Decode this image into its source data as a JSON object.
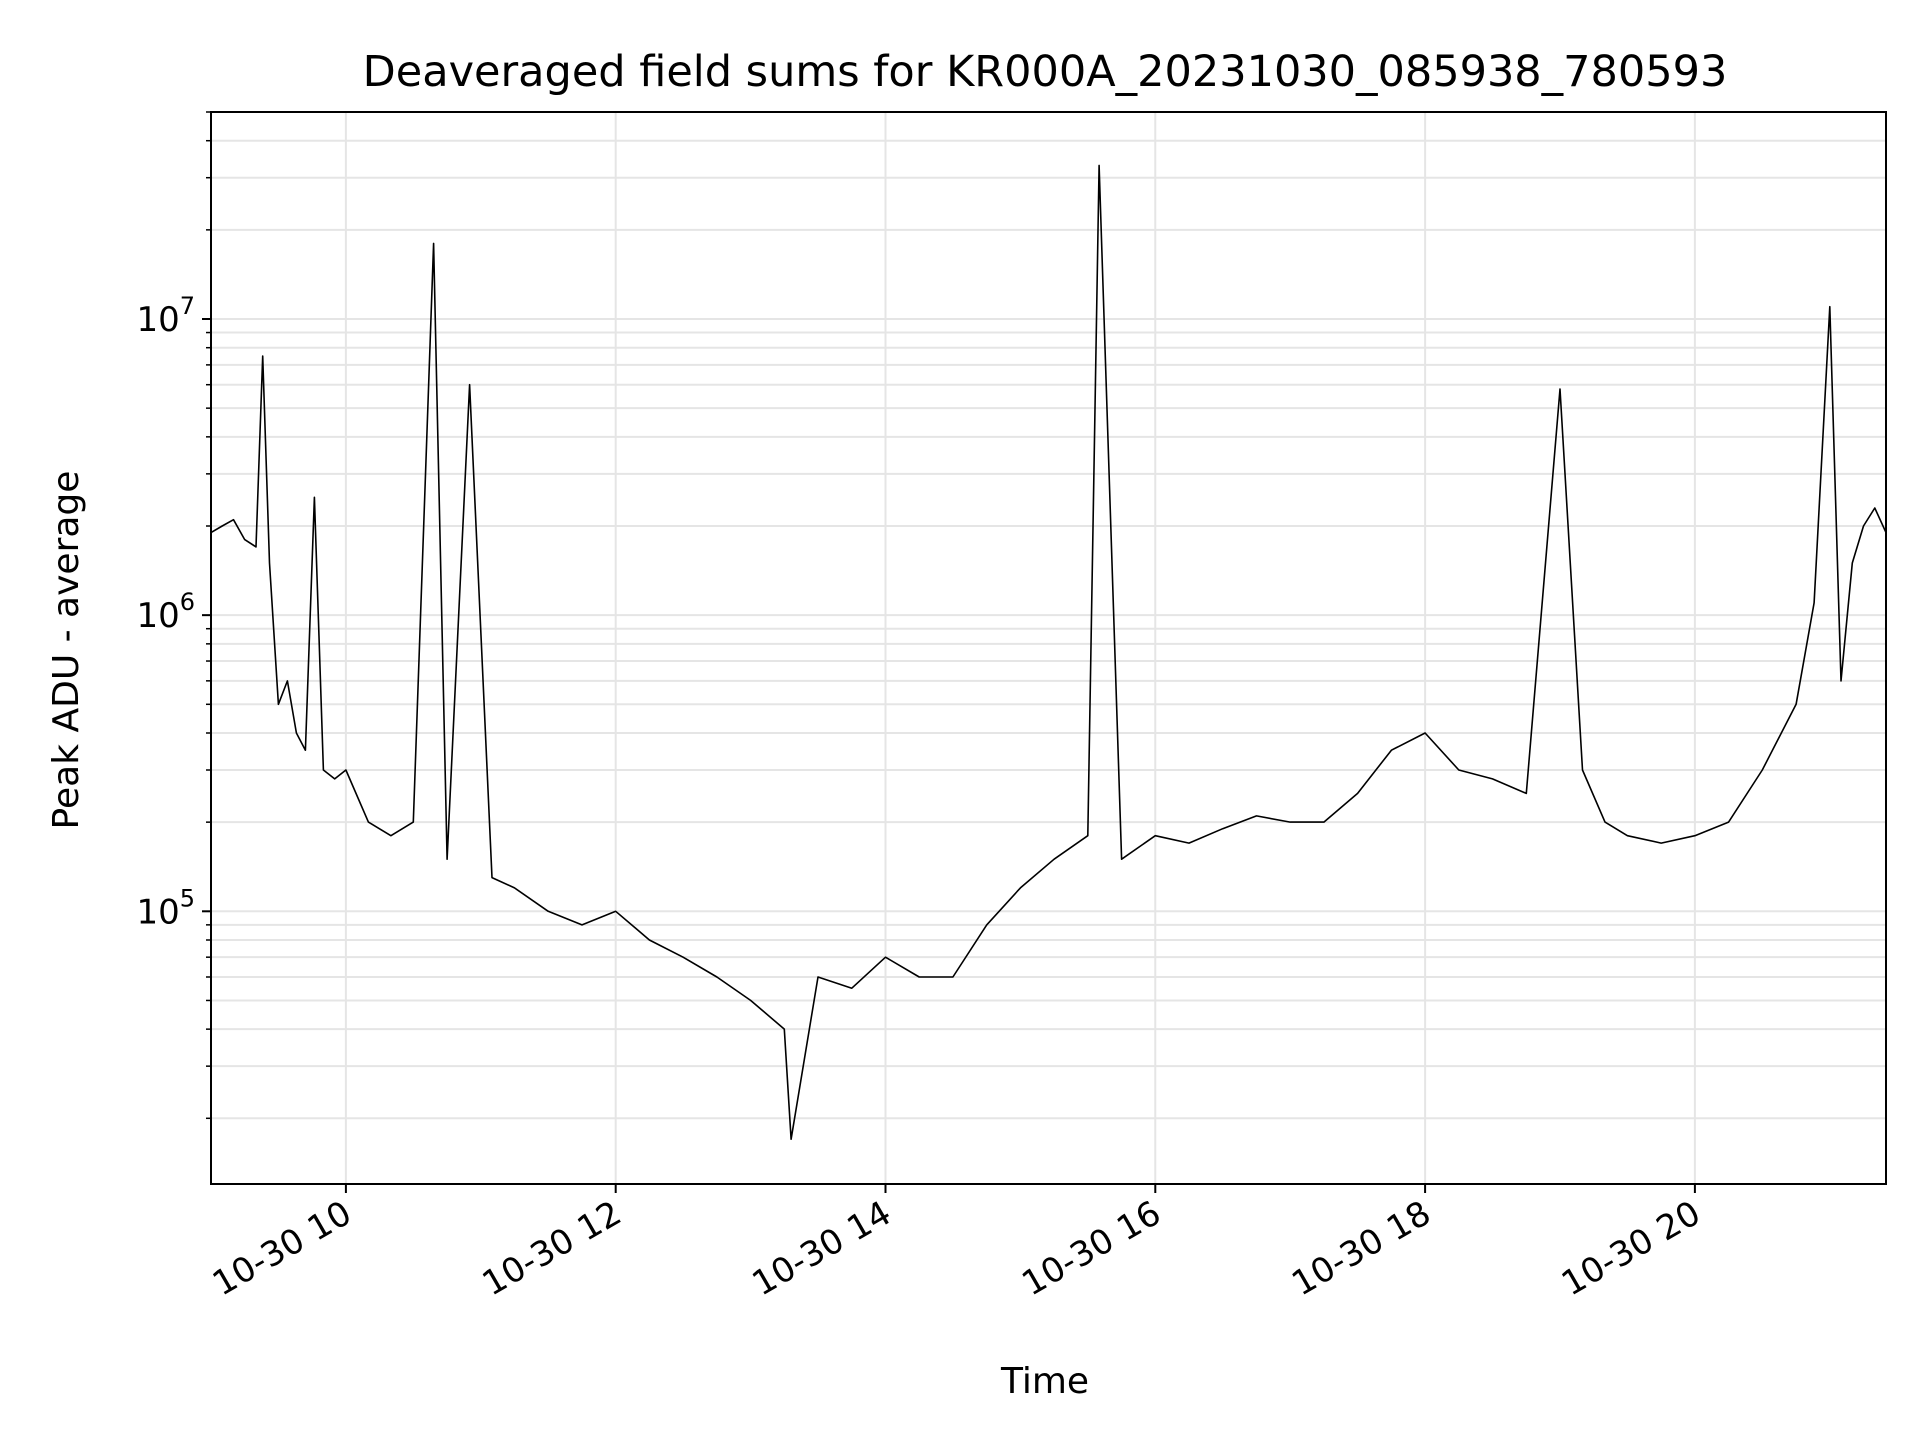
{
  "chart_data": {
    "type": "line",
    "title": "Deaveraged field sums for KR000A_20231030_085938_780593",
    "xlabel": "Time",
    "ylabel": "Peak ADU - average",
    "y_scale": "log",
    "grid": true,
    "line_color": "#000000",
    "grid_color": "#e5e5e5",
    "xlim": [
      "2023-10-30 09:00",
      "2023-10-30 21:25"
    ],
    "ylim": [
      12000,
      50000000
    ],
    "x_ticks": [
      {
        "value": "2023-10-30 10:00",
        "label": "10-30 10"
      },
      {
        "value": "2023-10-30 12:00",
        "label": "10-30 12"
      },
      {
        "value": "2023-10-30 14:00",
        "label": "10-30 14"
      },
      {
        "value": "2023-10-30 16:00",
        "label": "10-30 16"
      },
      {
        "value": "2023-10-30 18:00",
        "label": "10-30 18"
      },
      {
        "value": "2023-10-30 20:00",
        "label": "10-30 20"
      }
    ],
    "y_ticks": [
      {
        "value": 100000,
        "base": "10",
        "exp": "5"
      },
      {
        "value": 1000000,
        "base": "10",
        "exp": "6"
      },
      {
        "value": 10000000,
        "base": "10",
        "exp": "7"
      }
    ],
    "series": [
      {
        "x": [
          "2023-10-30 09:00",
          "2023-10-30 09:05",
          "2023-10-30 09:10",
          "2023-10-30 09:15",
          "2023-10-30 09:20",
          "2023-10-30 09:23",
          "2023-10-30 09:26",
          "2023-10-30 09:30",
          "2023-10-30 09:34",
          "2023-10-30 09:38",
          "2023-10-30 09:42",
          "2023-10-30 09:46",
          "2023-10-30 09:50",
          "2023-10-30 09:55",
          "2023-10-30 10:00",
          "2023-10-30 10:10",
          "2023-10-30 10:20",
          "2023-10-30 10:30",
          "2023-10-30 10:39",
          "2023-10-30 10:45",
          "2023-10-30 10:55",
          "2023-10-30 11:05",
          "2023-10-30 11:15",
          "2023-10-30 11:30",
          "2023-10-30 11:45",
          "2023-10-30 12:00",
          "2023-10-30 12:15",
          "2023-10-30 12:30",
          "2023-10-30 12:45",
          "2023-10-30 13:00",
          "2023-10-30 13:15",
          "2023-10-30 13:18",
          "2023-10-30 13:30",
          "2023-10-30 13:45",
          "2023-10-30 14:00",
          "2023-10-30 14:15",
          "2023-10-30 14:30",
          "2023-10-30 14:45",
          "2023-10-30 15:00",
          "2023-10-30 15:15",
          "2023-10-30 15:30",
          "2023-10-30 15:35",
          "2023-10-30 15:45",
          "2023-10-30 16:00",
          "2023-10-30 16:15",
          "2023-10-30 16:30",
          "2023-10-30 16:45",
          "2023-10-30 17:00",
          "2023-10-30 17:15",
          "2023-10-30 17:30",
          "2023-10-30 17:45",
          "2023-10-30 18:00",
          "2023-10-30 18:15",
          "2023-10-30 18:30",
          "2023-10-30 18:45",
          "2023-10-30 19:00",
          "2023-10-30 19:10",
          "2023-10-30 19:20",
          "2023-10-30 19:30",
          "2023-10-30 19:45",
          "2023-10-30 20:00",
          "2023-10-30 20:15",
          "2023-10-30 20:30",
          "2023-10-30 20:45",
          "2023-10-30 20:53",
          "2023-10-30 21:00",
          "2023-10-30 21:05",
          "2023-10-30 21:10",
          "2023-10-30 21:15",
          "2023-10-30 21:20",
          "2023-10-30 21:25"
        ],
        "y": [
          1900000,
          2000000,
          2100000,
          1800000,
          1700000,
          7500000,
          1500000,
          500000,
          600000,
          400000,
          350000,
          2500000,
          300000,
          280000,
          300000,
          200000,
          180000,
          200000,
          18000000,
          150000,
          6000000,
          130000,
          120000,
          100000,
          90000,
          100000,
          80000,
          70000,
          60000,
          50000,
          40000,
          17000,
          60000,
          55000,
          70000,
          60000,
          60000,
          90000,
          120000,
          150000,
          180000,
          33000000,
          150000,
          180000,
          170000,
          190000,
          210000,
          200000,
          200000,
          250000,
          350000,
          400000,
          300000,
          280000,
          250000,
          5800000,
          300000,
          200000,
          180000,
          170000,
          180000,
          200000,
          300000,
          500000,
          1100000,
          11000000,
          600000,
          1500000,
          2000000,
          2300000,
          1900000
        ]
      }
    ]
  }
}
